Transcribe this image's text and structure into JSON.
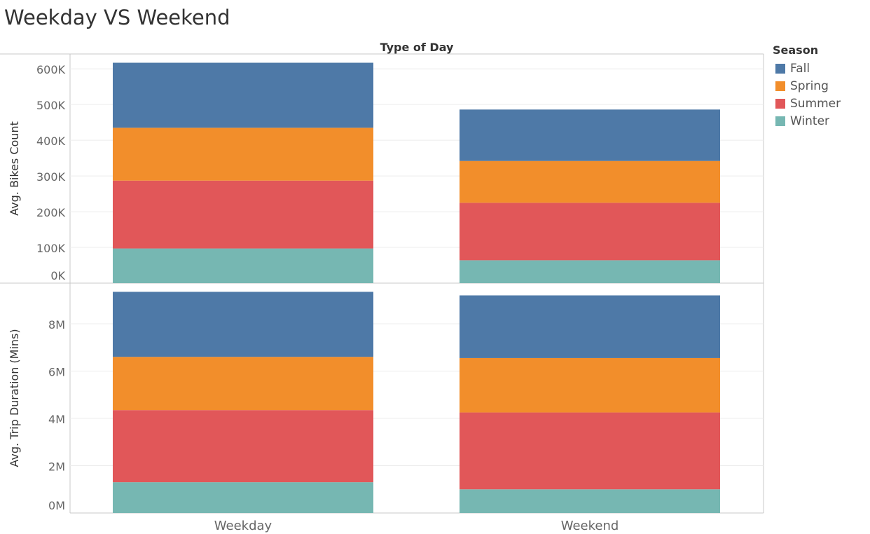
{
  "title": "Weekday VS Weekend",
  "chart_data": {
    "type": "bar",
    "stacked": true,
    "column_header": "Type of Day",
    "categories": [
      "Weekday",
      "Weekend"
    ],
    "panels": [
      {
        "ylabel": "Avg. Bikes Count",
        "ylim": [
          0,
          620000
        ],
        "ticks": [
          0,
          100000,
          200000,
          300000,
          400000,
          500000,
          600000
        ],
        "tick_labels": [
          "0K",
          "100K",
          "200K",
          "300K",
          "400K",
          "500K",
          "600K"
        ],
        "series": [
          {
            "name": "Winter",
            "values": [
              97000,
              64000
            ]
          },
          {
            "name": "Summer",
            "values": [
              190000,
              161000
            ]
          },
          {
            "name": "Spring",
            "values": [
              148000,
              117000
            ]
          },
          {
            "name": "Fall",
            "values": [
              182000,
              144000
            ]
          }
        ]
      },
      {
        "ylabel": "Avg. Trip Duration (Mins)",
        "ylim": [
          0,
          9600000
        ],
        "ticks": [
          0,
          2000000,
          4000000,
          6000000,
          8000000
        ],
        "tick_labels": [
          "0M",
          "2M",
          "4M",
          "6M",
          "8M"
        ],
        "series": [
          {
            "name": "Winter",
            "values": [
              1300000,
              1000000
            ]
          },
          {
            "name": "Summer",
            "values": [
              3050000,
              3250000
            ]
          },
          {
            "name": "Spring",
            "values": [
              2250000,
              2300000
            ]
          },
          {
            "name": "Fall",
            "values": [
              2750000,
              2650000
            ]
          }
        ]
      }
    ],
    "legend": {
      "title": "Season",
      "placement": "right",
      "entries": [
        "Fall",
        "Spring",
        "Summer",
        "Winter"
      ]
    },
    "colors": {
      "Fall": "#4e79a7",
      "Spring": "#f28e2b",
      "Summer": "#e15759",
      "Winter": "#76b7b2"
    },
    "grid": true
  }
}
